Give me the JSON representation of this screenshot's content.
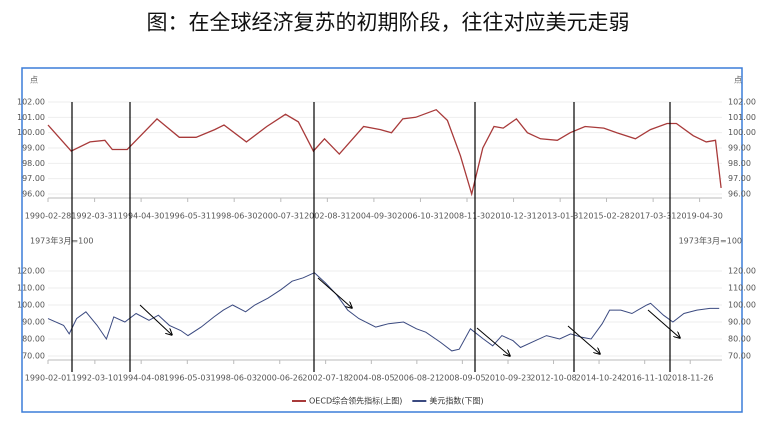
{
  "title": "图：在全球经济复苏的初期阶段，往往对应美元走弱",
  "chart_data": [
    {
      "type": "line",
      "ylabel": "点",
      "xlim": [
        "1990-02-28",
        "2020-04-30"
      ],
      "xticks": [
        "1990-02-28",
        "1992-03-31",
        "1994-04-30",
        "1996-05-31",
        "1998-06-30",
        "2000-07-31",
        "2002-08-31",
        "2004-09-30",
        "2006-10-31",
        "2008-11-30",
        "2010-12-31",
        "2013-01-31",
        "2015-02-28",
        "2017-03-31",
        "2019-04-30"
      ],
      "ylim": [
        96,
        102
      ],
      "yticks": [
        {
          "value": 96,
          "label": "96.00"
        },
        {
          "value": 97,
          "label": "97.00"
        },
        {
          "value": 98,
          "label": "98.00"
        },
        {
          "value": 99,
          "label": "99.00"
        },
        {
          "value": 100,
          "label": "100.00"
        },
        {
          "value": 101,
          "label": "101.00"
        },
        {
          "value": 102,
          "label": "102.00"
        }
      ],
      "x": [
        "1990-02-28",
        "1991-03-15",
        "1992-01-15",
        "1992-09-15",
        "1993-01-15",
        "1993-09-15",
        "1995-01-15",
        "1996-01-15",
        "1996-10-15",
        "1997-08-15",
        "1998-01-15",
        "1999-01-15",
        "1999-12-15",
        "2000-10-15",
        "2001-05-15",
        "2002-01-15",
        "2002-07-15",
        "2003-03-15",
        "2004-04-15",
        "2005-01-15",
        "2005-07-15",
        "2006-01-15",
        "2006-08-15",
        "2007-07-15",
        "2008-01-15",
        "2008-08-15",
        "2009-02-15",
        "2009-08-15",
        "2010-02-15",
        "2010-07-15",
        "2011-02-15",
        "2011-08-15",
        "2012-03-15",
        "2012-12-15",
        "2013-07-15",
        "2014-03-15",
        "2015-01-15",
        "2015-08-15",
        "2016-06-15",
        "2017-02-15",
        "2017-11-15",
        "2018-04-15",
        "2019-01-15",
        "2019-08-15",
        "2020-01-15",
        "2020-04-15"
      ],
      "series": [
        {
          "name": "OECD综合领先指标(上图)",
          "color": "#a83a3a",
          "values": [
            100.5,
            98.8,
            99.4,
            99.5,
            98.9,
            98.9,
            100.9,
            99.7,
            99.7,
            100.2,
            100.5,
            99.4,
            100.4,
            101.2,
            100.7,
            98.8,
            99.6,
            98.6,
            100.4,
            100.2,
            100.0,
            100.9,
            101.0,
            101.5,
            100.8,
            98.5,
            96.0,
            99.0,
            100.4,
            100.3,
            100.9,
            100.0,
            99.6,
            99.5,
            100.0,
            100.4,
            100.3,
            100.0,
            99.6,
            100.2,
            100.6,
            100.6,
            99.8,
            99.4,
            99.5,
            96.4
          ]
        }
      ]
    },
    {
      "type": "line",
      "ylabel": "1973年3月=100",
      "xlim": [
        "1990-02-01",
        "2020-04-30"
      ],
      "xticks": [
        "1990-02-01",
        "1992-03-10",
        "1994-04-08",
        "1996-05-03",
        "1998-06-03",
        "2000-06-26",
        "2002-07-18",
        "2004-08-05",
        "2006-08-21",
        "2008-09-05",
        "2010-09-23",
        "2012-10-08",
        "2014-10-24",
        "2016-11-10",
        "2018-11-26"
      ],
      "ylim": [
        70,
        120
      ],
      "yticks": [
        {
          "value": 70,
          "label": "70.00"
        },
        {
          "value": 80,
          "label": "80.00"
        },
        {
          "value": 90,
          "label": "90.00"
        },
        {
          "value": 100,
          "label": "100.00"
        },
        {
          "value": 110,
          "label": "110.00"
        },
        {
          "value": 120,
          "label": "120.00"
        }
      ],
      "x": [
        "1990-02-01",
        "1990-10-15",
        "1991-01-15",
        "1991-05-15",
        "1991-10-15",
        "1992-04-15",
        "1992-09-15",
        "1993-01-15",
        "1993-07-15",
        "1994-01-15",
        "1994-08-15",
        "1995-01-15",
        "1995-07-15",
        "1996-01-15",
        "1996-05-15",
        "1996-12-15",
        "1997-07-15",
        "1997-12-15",
        "1998-05-15",
        "1998-12-15",
        "1999-05-15",
        "1999-12-15",
        "2000-07-15",
        "2001-01-15",
        "2001-07-15",
        "2002-01-15",
        "2002-07-15",
        "2003-01-15",
        "2003-07-15",
        "2004-01-15",
        "2004-10-15",
        "2005-05-15",
        "2006-01-15",
        "2006-08-15",
        "2007-01-15",
        "2007-09-15",
        "2008-03-15",
        "2008-07-15",
        "2009-01-15",
        "2009-08-15",
        "2010-01-15",
        "2010-06-15",
        "2010-12-15",
        "2011-04-15",
        "2011-12-15",
        "2012-06-15",
        "2013-01-15",
        "2013-07-15",
        "2014-01-15",
        "2014-06-15",
        "2014-12-15",
        "2015-04-15",
        "2015-10-15",
        "2016-04-15",
        "2016-12-15",
        "2017-02-15",
        "2017-09-15",
        "2018-02-15",
        "2018-08-15",
        "2019-03-15",
        "2019-10-15",
        "2020-03-15"
      ],
      "series": [
        {
          "name": "美元指数(下图)",
          "color": "#3b4a80",
          "values": [
            92,
            88,
            83,
            92,
            96,
            88,
            80,
            93,
            90,
            95,
            91,
            94,
            88,
            85,
            82,
            87,
            93,
            97,
            100,
            96,
            100,
            104,
            109,
            114,
            116,
            119,
            113,
            106,
            97,
            92,
            87,
            89,
            90,
            86,
            84,
            78,
            73,
            74,
            86,
            80,
            76,
            82,
            79,
            75,
            79,
            82,
            80,
            83,
            81,
            80,
            89,
            97,
            97,
            95,
            100,
            101,
            94,
            90,
            95,
            97,
            98,
            98
          ]
        }
      ]
    }
  ]
}
